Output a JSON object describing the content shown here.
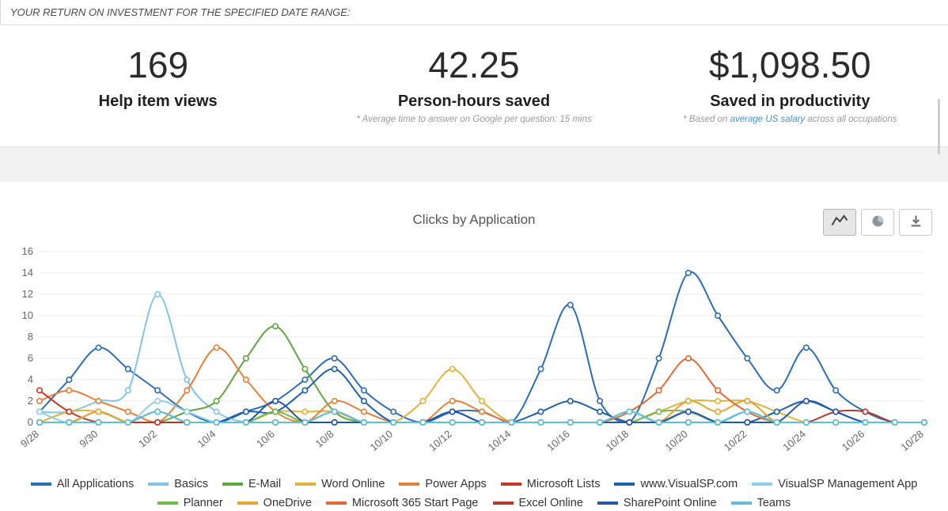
{
  "header": {
    "title": "YOUR RETURN ON INVESTMENT FOR THE SPECIFIED DATE RANGE:"
  },
  "stats": [
    {
      "value": "169",
      "label": "Help item views"
    },
    {
      "value": "42.25",
      "label": "Person-hours saved",
      "footnote": "* Average time to answer on Google per question: 15 mins"
    },
    {
      "value": "$1,098.50",
      "label": "Saved in productivity",
      "footnote_prefix": "* Based on ",
      "footnote_link": "average US salary",
      "footnote_suffix": " across all occupations"
    }
  ],
  "chart": {
    "title": "Clicks by Application",
    "toolbar_icons": [
      "line-chart-icon",
      "pie-chart-icon",
      "download-icon"
    ],
    "active_view": "line-chart"
  },
  "colors": {
    "link": "#4a90d2",
    "grid": "#ebebeb",
    "axis": "#c3c3c3",
    "tick_text": "#666666"
  },
  "chart_data": {
    "type": "line",
    "title": "Clicks by Application",
    "xlabel": "",
    "ylabel": "",
    "ylim": [
      0,
      16
    ],
    "yticks": [
      0,
      2,
      4,
      6,
      8,
      10,
      12,
      14,
      16
    ],
    "grid": true,
    "legend_position": "bottom",
    "x_tick_labels_shown": [
      "9/28",
      "9/30",
      "10/2",
      "10/4",
      "10/6",
      "10/8",
      "10/10",
      "10/12",
      "10/14",
      "10/16",
      "10/18",
      "10/20",
      "10/22",
      "10/24",
      "10/26",
      "10/28"
    ],
    "x": [
      "9/28",
      "9/29",
      "9/30",
      "10/1",
      "10/2",
      "10/3",
      "10/4",
      "10/5",
      "10/6",
      "10/7",
      "10/8",
      "10/9",
      "10/10",
      "10/11",
      "10/12",
      "10/13",
      "10/14",
      "10/15",
      "10/16",
      "10/17",
      "10/18",
      "10/19",
      "10/20",
      "10/21",
      "10/22",
      "10/23",
      "10/24",
      "10/25",
      "10/26",
      "10/27",
      "10/28"
    ],
    "series": [
      {
        "name": "All Applications",
        "color": "#2d6db5",
        "values": [
          1,
          4,
          7,
          5,
          3,
          1,
          0,
          1,
          2,
          4,
          6,
          3,
          1,
          0,
          1,
          1,
          0,
          5,
          11,
          2,
          0,
          6,
          14,
          10,
          6,
          3,
          7,
          3,
          1,
          0,
          0
        ]
      },
      {
        "name": "Basics",
        "color": "#82c3e6",
        "values": [
          1,
          1,
          2,
          3,
          12,
          4,
          1,
          0,
          0,
          0,
          1,
          0,
          0,
          0,
          0,
          0,
          0,
          0,
          0,
          0,
          1,
          0,
          1,
          0,
          1,
          0,
          0,
          0,
          0,
          0,
          0
        ]
      },
      {
        "name": "E-Mail",
        "color": "#5fa643",
        "values": [
          0,
          0,
          0,
          0,
          0,
          1,
          2,
          6,
          9,
          5,
          1,
          0,
          0,
          0,
          0,
          0,
          0,
          0,
          0,
          0,
          0,
          0,
          0,
          0,
          0,
          0,
          0,
          0,
          0,
          0,
          0
        ]
      },
      {
        "name": "Word Online",
        "color": "#e0b23e",
        "values": [
          0,
          1,
          1,
          0,
          0,
          0,
          0,
          0,
          1,
          1,
          1,
          0,
          0,
          2,
          5,
          2,
          0,
          0,
          0,
          0,
          0,
          1,
          2,
          2,
          2,
          1,
          0,
          0,
          0,
          0,
          0
        ]
      },
      {
        "name": "Power Apps",
        "color": "#e2813c",
        "values": [
          2,
          3,
          2,
          1,
          0,
          3,
          7,
          4,
          1,
          0,
          2,
          1,
          0,
          0,
          2,
          1,
          0,
          0,
          0,
          0,
          0,
          0,
          0,
          0,
          0,
          0,
          0,
          0,
          0,
          0,
          0
        ]
      },
      {
        "name": "Microsoft Lists",
        "color": "#c0392b",
        "values": [
          3,
          1,
          0,
          0,
          0,
          0,
          0,
          0,
          0,
          0,
          0,
          0,
          0,
          0,
          0,
          0,
          0,
          0,
          0,
          0,
          0,
          0,
          0,
          0,
          0,
          0,
          0,
          0,
          0,
          0,
          0
        ]
      },
      {
        "name": "www.VisualSP.com",
        "color": "#1d5fa8",
        "values": [
          0,
          0,
          0,
          0,
          0,
          0,
          0,
          1,
          1,
          3,
          5,
          2,
          0,
          0,
          1,
          0,
          0,
          1,
          2,
          1,
          0,
          0,
          1,
          0,
          0,
          1,
          2,
          1,
          0,
          0,
          0
        ]
      },
      {
        "name": "VisualSP Management App",
        "color": "#8fd0e8",
        "values": [
          1,
          0,
          1,
          0,
          2,
          1,
          0,
          0,
          0,
          0,
          1,
          0,
          0,
          0,
          0,
          0,
          0,
          0,
          0,
          0,
          1,
          0,
          1,
          0,
          1,
          0,
          0,
          0,
          0,
          0,
          0
        ]
      },
      {
        "name": "Planner",
        "color": "#71b84f",
        "values": [
          0,
          0,
          0,
          0,
          0,
          0,
          0,
          0,
          1,
          0,
          0,
          0,
          0,
          0,
          0,
          0,
          0,
          0,
          0,
          0,
          0,
          1,
          1,
          0,
          0,
          0,
          0,
          0,
          0,
          0,
          0
        ]
      },
      {
        "name": "OneDrive",
        "color": "#e5a32f",
        "values": [
          0,
          0,
          1,
          0,
          0,
          0,
          0,
          0,
          0,
          0,
          1,
          0,
          0,
          0,
          0,
          0,
          0,
          0,
          0,
          0,
          0,
          0,
          2,
          1,
          2,
          0,
          0,
          0,
          0,
          0,
          0
        ]
      },
      {
        "name": "Microsoft 365 Start Page",
        "color": "#e06a33",
        "values": [
          0,
          0,
          0,
          0,
          0,
          0,
          0,
          0,
          0,
          0,
          0,
          0,
          0,
          0,
          0,
          0,
          0,
          0,
          0,
          0,
          1,
          3,
          6,
          3,
          1,
          0,
          0,
          0,
          0,
          0,
          0
        ]
      },
      {
        "name": "Excel Online",
        "color": "#b03a2e",
        "values": [
          0,
          0,
          0,
          0,
          0,
          0,
          0,
          0,
          0,
          0,
          0,
          0,
          0,
          0,
          0,
          0,
          0,
          0,
          0,
          0,
          0,
          0,
          0,
          0,
          0,
          0,
          0,
          1,
          1,
          0,
          0
        ]
      },
      {
        "name": "SharePoint Online",
        "color": "#2458a4",
        "values": [
          0,
          0,
          0,
          0,
          1,
          0,
          0,
          0,
          2,
          0,
          0,
          0,
          0,
          0,
          1,
          0,
          0,
          0,
          0,
          0,
          0,
          0,
          1,
          0,
          0,
          0,
          2,
          1,
          0,
          0,
          0
        ]
      },
      {
        "name": "Teams",
        "color": "#63bdd4",
        "values": [
          0,
          0,
          0,
          0,
          1,
          0,
          0,
          0,
          0,
          0,
          1,
          0,
          0,
          0,
          0,
          0,
          0,
          0,
          0,
          0,
          1,
          0,
          0,
          0,
          1,
          0,
          0,
          0,
          0,
          0,
          0
        ]
      }
    ]
  }
}
